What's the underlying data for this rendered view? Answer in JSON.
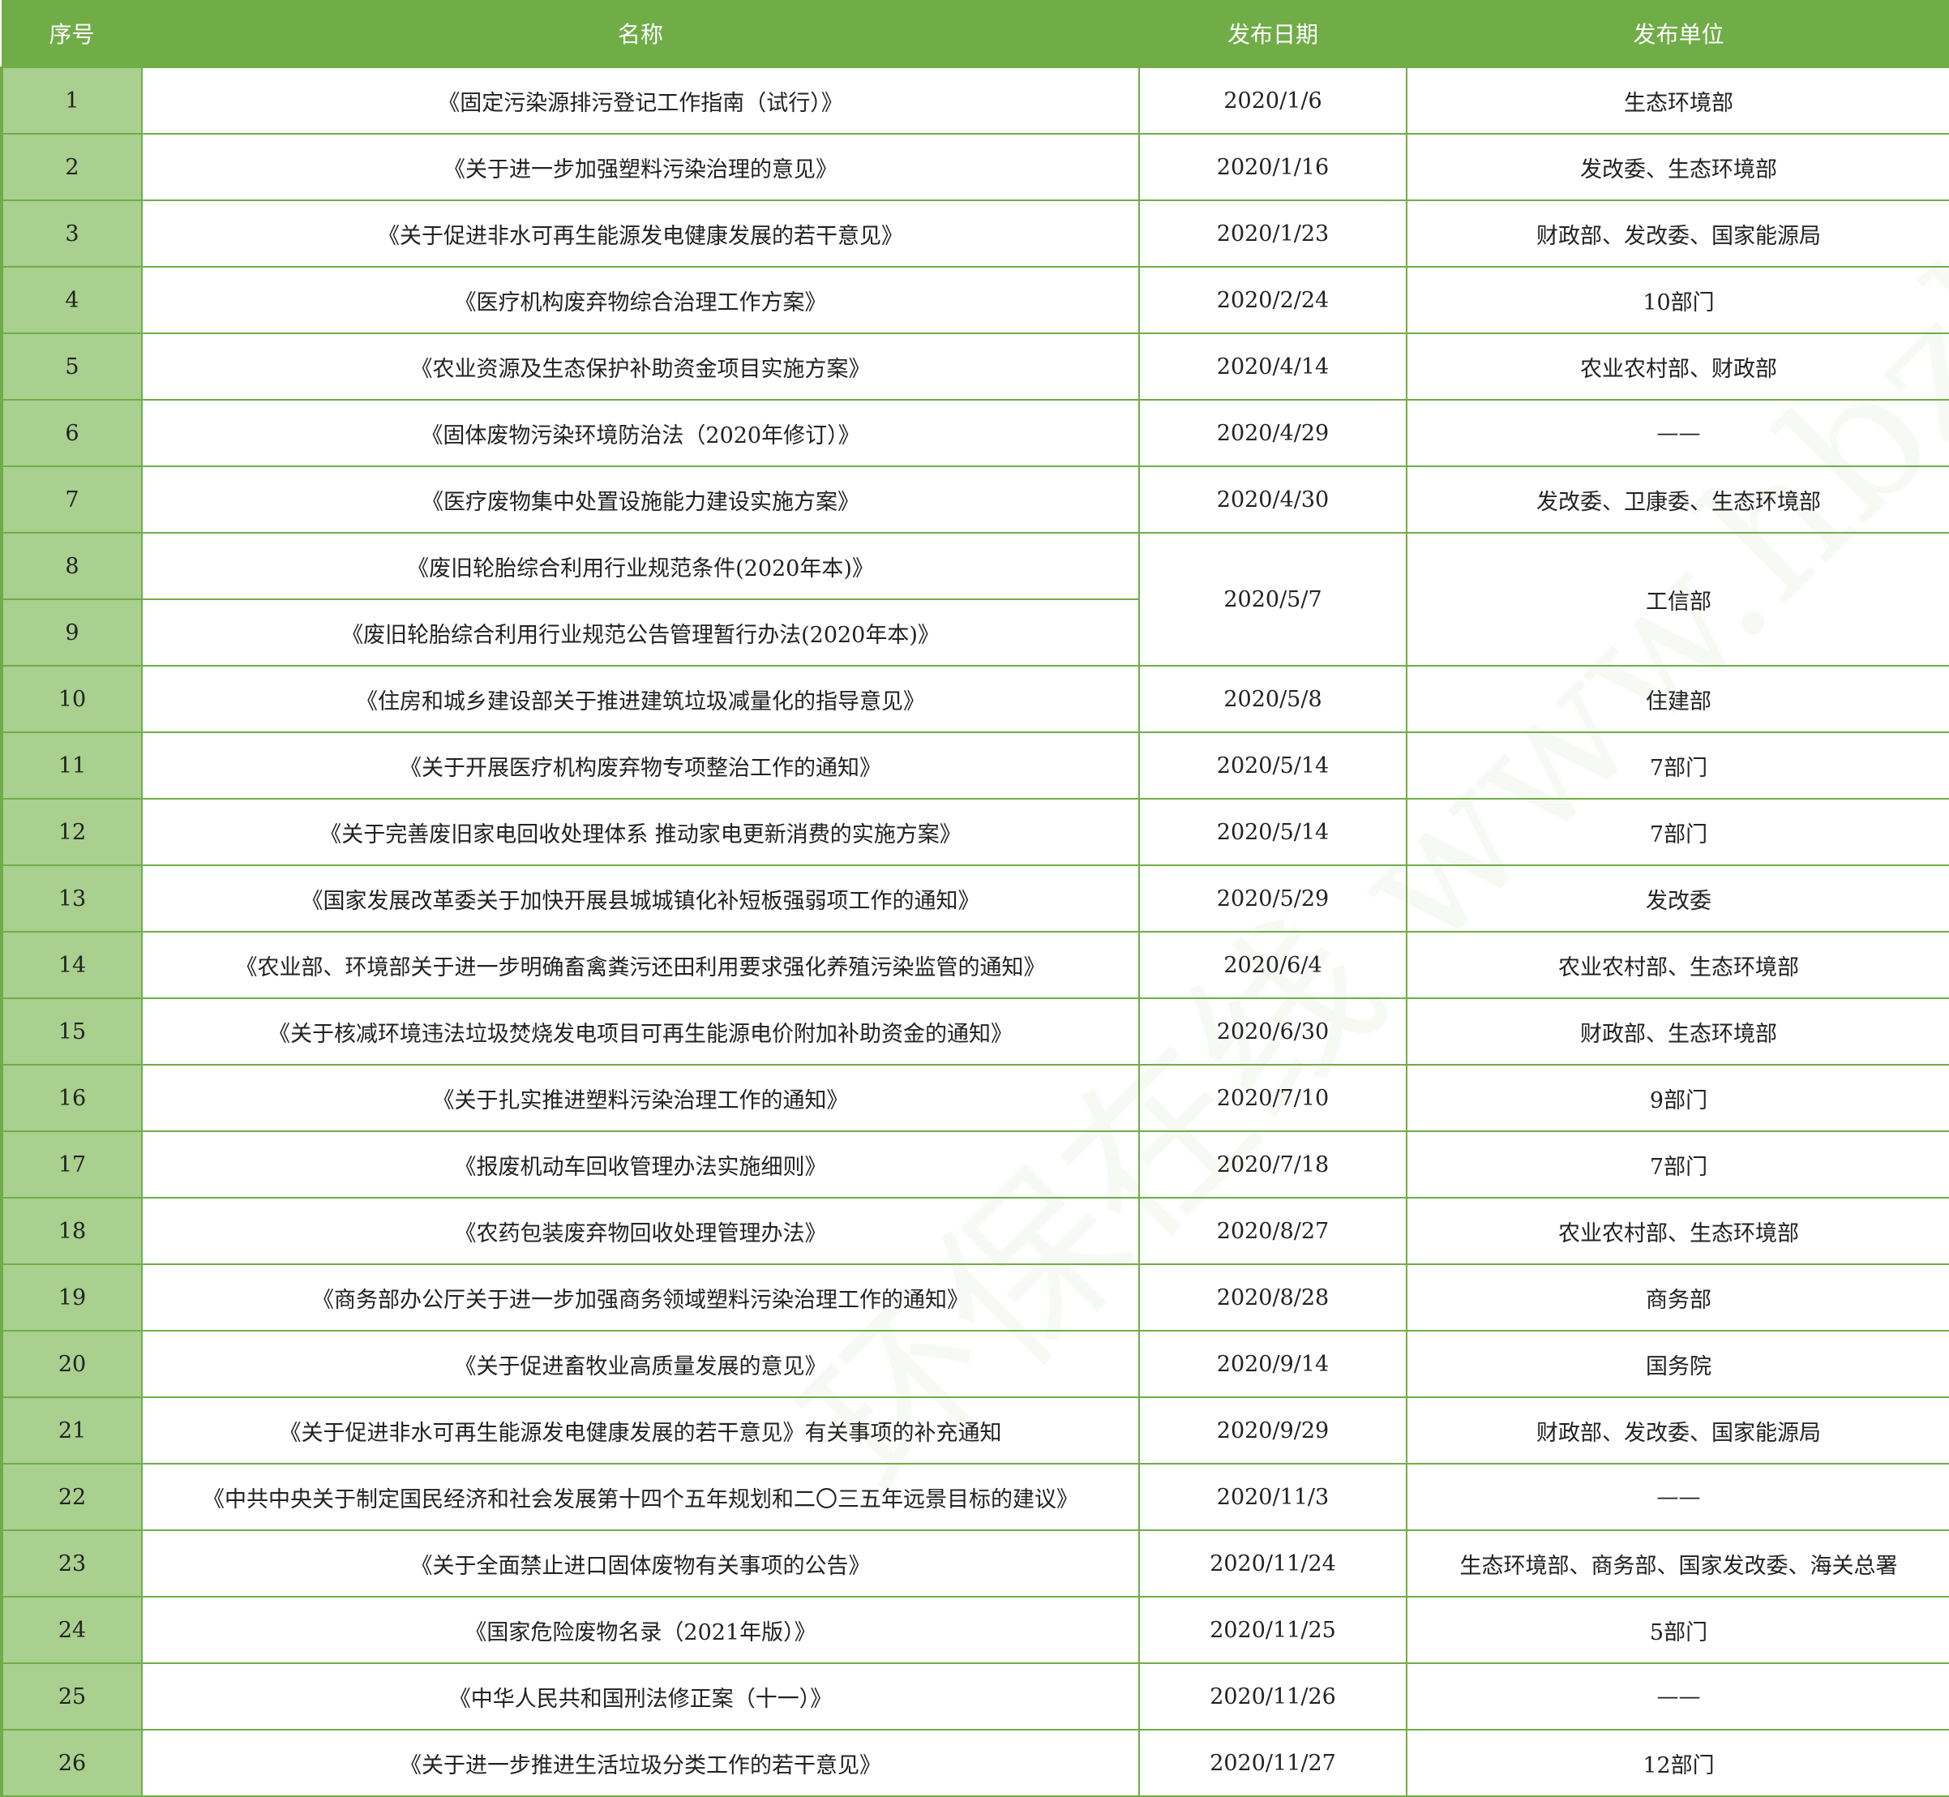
{
  "header": {
    "index": "序号",
    "name": "名称",
    "date": "发布日期",
    "issuer": "发布单位"
  },
  "rows": [
    {
      "n": "1",
      "name": "《固定污染源排污登记工作指南（试行）》",
      "date": "2020/1/6",
      "issuer": "生态环境部"
    },
    {
      "n": "2",
      "name": "《关于进一步加强塑料污染治理的意见》",
      "date": "2020/1/16",
      "issuer": "发改委、生态环境部"
    },
    {
      "n": "3",
      "name": "《关于促进非水可再生能源发电健康发展的若干意见》",
      "date": "2020/1/23",
      "issuer": "财政部、发改委、国家能源局"
    },
    {
      "n": "4",
      "name": "《医疗机构废弃物综合治理工作方案》",
      "date": "2020/2/24",
      "issuer": "10部门"
    },
    {
      "n": "5",
      "name": "《农业资源及生态保护补助资金项目实施方案》",
      "date": "2020/4/14",
      "issuer": "农业农村部、财政部"
    },
    {
      "n": "6",
      "name": "《固体废物污染环境防治法（2020年修订）》",
      "date": "2020/4/29",
      "issuer": "——"
    },
    {
      "n": "7",
      "name": "《医疗废物集中处置设施能力建设实施方案》",
      "date": "2020/4/30",
      "issuer": "发改委、卫康委、生态环境部"
    },
    {
      "n": "8",
      "name": "《废旧轮胎综合利用行业规范条件(2020年本)》",
      "date": "2020/5/7",
      "issuer": "工信部"
    },
    {
      "n": "9",
      "name": "《废旧轮胎综合利用行业规范公告管理暂行办法(2020年本)》"
    },
    {
      "n": "10",
      "name": "《住房和城乡建设部关于推进建筑垃圾减量化的指导意见》",
      "date": "2020/5/8",
      "issuer": "住建部"
    },
    {
      "n": "11",
      "name": "《关于开展医疗机构废弃物专项整治工作的通知》",
      "date": "2020/5/14",
      "issuer": "7部门"
    },
    {
      "n": "12",
      "name": "《关于完善废旧家电回收处理体系  推动家电更新消费的实施方案》",
      "date": "2020/5/14",
      "issuer": "7部门"
    },
    {
      "n": "13",
      "name": "《国家发展改革委关于加快开展县城城镇化补短板强弱项工作的通知》",
      "date": "2020/5/29",
      "issuer": "发改委"
    },
    {
      "n": "14",
      "name": "《农业部、环境部关于进一步明确畜禽粪污还田利用要求强化养殖污染监管的通知》",
      "date": "2020/6/4",
      "issuer": "农业农村部、生态环境部"
    },
    {
      "n": "15",
      "name": "《关于核减环境违法垃圾焚烧发电项目可再生能源电价附加补助资金的通知》",
      "date": "2020/6/30",
      "issuer": "财政部、生态环境部"
    },
    {
      "n": "16",
      "name": "《关于扎实推进塑料污染治理工作的通知》",
      "date": "2020/7/10",
      "issuer": "9部门"
    },
    {
      "n": "17",
      "name": "《报废机动车回收管理办法实施细则》",
      "date": "2020/7/18",
      "issuer": "7部门"
    },
    {
      "n": "18",
      "name": "《农药包装废弃物回收处理管理办法》",
      "date": "2020/8/27",
      "issuer": "农业农村部、生态环境部"
    },
    {
      "n": "19",
      "name": "《商务部办公厅关于进一步加强商务领域塑料污染治理工作的通知》",
      "date": "2020/8/28",
      "issuer": "商务部"
    },
    {
      "n": "20",
      "name": "《关于促进畜牧业高质量发展的意见》",
      "date": "2020/9/14",
      "issuer": "国务院"
    },
    {
      "n": "21",
      "name": "《关于促进非水可再生能源发电健康发展的若干意见》有关事项的补充通知",
      "date": "2020/9/29",
      "issuer": "财政部、发改委、国家能源局"
    },
    {
      "n": "22",
      "name": "《中共中央关于制定国民经济和社会发展第十四个五年规划和二〇三五年远景目标的建议》",
      "date": "2020/11/3",
      "issuer": "——"
    },
    {
      "n": "23",
      "name": "《关于全面禁止进口固体废物有关事项的公告》",
      "date": "2020/11/24",
      "issuer": "生态环境部、商务部、国家发改委、海关总署"
    },
    {
      "n": "24",
      "name": "《国家危险废物名录（2021年版）》",
      "date": "2020/11/25",
      "issuer": "5部门"
    },
    {
      "n": "25",
      "name": "《中华人民共和国刑法修正案（十一）》",
      "date": "2020/11/26",
      "issuer": "——"
    },
    {
      "n": "26",
      "name": "《关于进一步推进生活垃圾分类工作的若干意见》",
      "date": "2020/11/27",
      "issuer": "12部门"
    }
  ],
  "watermark": "环保在线 www.hbzhan.com",
  "colors": {
    "header_bg": "#70AD47",
    "index_bg": "#A9D08E",
    "border": "#70AD47"
  }
}
